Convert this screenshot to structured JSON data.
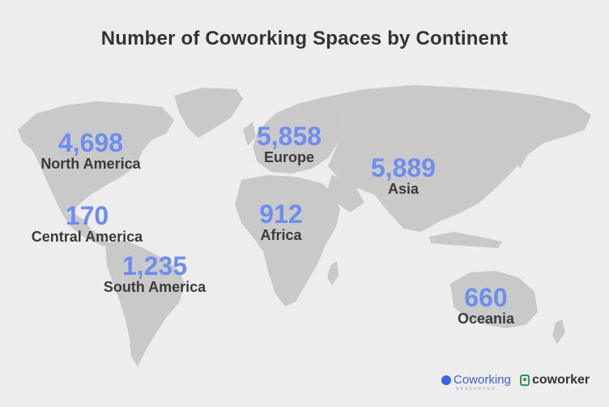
{
  "title": "Number of Coworking Spaces by Continent",
  "continents": [
    {
      "name": "North America",
      "count": "4,698"
    },
    {
      "name": "Central America",
      "count": "170"
    },
    {
      "name": "South America",
      "count": "1,235"
    },
    {
      "name": "Europe",
      "count": "5,858"
    },
    {
      "name": "Africa",
      "count": "912"
    },
    {
      "name": "Asia",
      "count": "5,889"
    },
    {
      "name": "Oceania",
      "count": "660"
    }
  ],
  "colors": {
    "number": "#6e8df0",
    "land": "#c9c9c9",
    "background": "#ededed"
  },
  "logos": {
    "coworking_resources": {
      "name": "Coworking",
      "sub": "RESOURCES",
      "icon": "globe-icon"
    },
    "coworker": {
      "name": "coworker",
      "icon": "pin-icon"
    }
  }
}
